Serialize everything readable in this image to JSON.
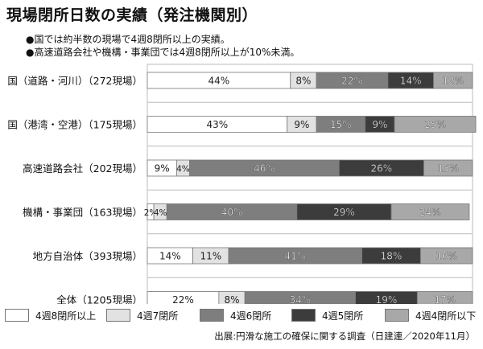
{
  "title": "現場閉所日数の実績（発注機関別）",
  "notes": [
    "●国では約半数の現場で4週8閉所以上の実績。",
    "●高速道路会社や機構・事業団では4週8閉所以上が10%未満。"
  ],
  "source": "出展:円滑な施工の確保に関する調査（日建連／2020年11月）",
  "colors": {
    "4週8閉所以上": "#ffffff",
    "4週7閉所": "#e2e2e2",
    "4週6閉所": "#7e7e7e",
    "4週5閉所": "#3c3c3c",
    "4週4閉所以下": "#a8a8a8"
  },
  "chart_data": {
    "type": "bar",
    "orientation": "horizontal",
    "stacked": true,
    "categories": [
      "国（道路・河川）（272現場）",
      "国（港湾・空港）（175現場）",
      "高速道路会社（202現場）",
      "機構・事業団（163現場）",
      "地方自治体（393現場）",
      "全体（1205現場）"
    ],
    "series": [
      {
        "name": "4週8閉所以上",
        "values": [
          44,
          43,
          9,
          2,
          14,
          22
        ],
        "labels": [
          "44%",
          "43%",
          "9%",
          "2%",
          "14%",
          "22%"
        ]
      },
      {
        "name": "4週7閉所",
        "values": [
          8,
          9,
          4,
          4,
          11,
          8
        ],
        "labels": [
          "8%",
          "9%",
          "4%",
          "4%",
          "11%",
          "8%"
        ]
      },
      {
        "name": "4週6閉所",
        "values": [
          22,
          15,
          46,
          40,
          41,
          34
        ],
        "labels": [
          "22%",
          "15%",
          "46%",
          "40%",
          "41%",
          "34%"
        ]
      },
      {
        "name": "4週5閉所",
        "values": [
          14,
          9,
          26,
          29,
          18,
          19
        ],
        "labels": [
          "14%",
          "9%",
          "26%",
          "29%",
          "18%",
          "19%"
        ]
      },
      {
        "name": "4週4閉所以下",
        "values": [
          12,
          25,
          15,
          24,
          16,
          17
        ],
        "labels": [
          "12%",
          "25%",
          "15%",
          "24%",
          "16%",
          "17%"
        ]
      }
    ],
    "xlim": [
      0,
      100
    ],
    "grid": true,
    "legend": "bottom"
  }
}
